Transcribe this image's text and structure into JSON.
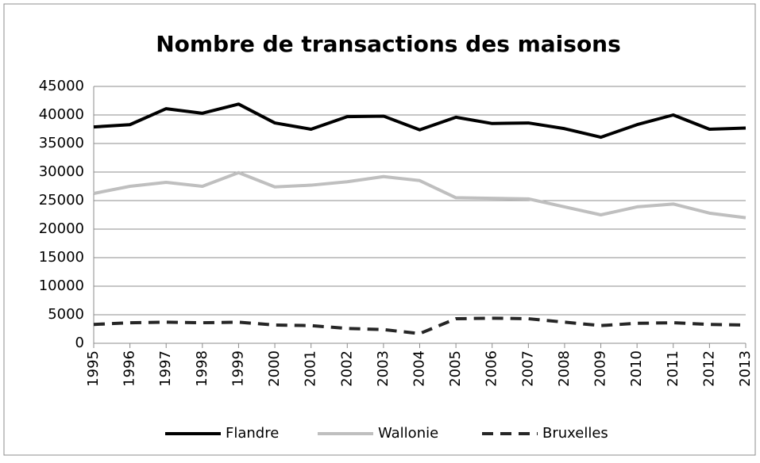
{
  "chart_data": {
    "type": "line",
    "title": "Nombre de transactions des maisons",
    "categories": [
      "1995",
      "1996",
      "1997",
      "1998",
      "1999",
      "2000",
      "2001",
      "2002",
      "2003",
      "2004",
      "2005",
      "2006",
      "2007",
      "2008",
      "2009",
      "2010",
      "2011",
      "2012",
      "2013"
    ],
    "series": [
      {
        "name": "Flandre",
        "color": "#000000",
        "dashed": false,
        "values": [
          37900,
          38300,
          41100,
          40300,
          41900,
          38600,
          37500,
          39700,
          39800,
          37400,
          39600,
          38500,
          38600,
          37600,
          36100,
          38300,
          40000,
          37500,
          37700
        ]
      },
      {
        "name": "Wallonie",
        "color": "#bfbfbf",
        "dashed": false,
        "values": [
          26250,
          27500,
          28200,
          27500,
          29900,
          27400,
          27700,
          28300,
          29200,
          28500,
          25500,
          25400,
          25300,
          23900,
          22500,
          23900,
          24400,
          22800,
          22000
        ]
      },
      {
        "name": "Bruxelles",
        "color": "#262626",
        "dashed": true,
        "values": [
          3300,
          3600,
          3700,
          3600,
          3700,
          3200,
          3100,
          2600,
          2400,
          1700,
          4300,
          4400,
          4300,
          3700,
          3100,
          3500,
          3600,
          3300,
          3200
        ]
      }
    ],
    "ylim": [
      0,
      45000
    ],
    "yticks": [
      0,
      5000,
      10000,
      15000,
      20000,
      25000,
      30000,
      35000,
      40000,
      45000
    ],
    "grid": true,
    "legend": "bottom"
  }
}
